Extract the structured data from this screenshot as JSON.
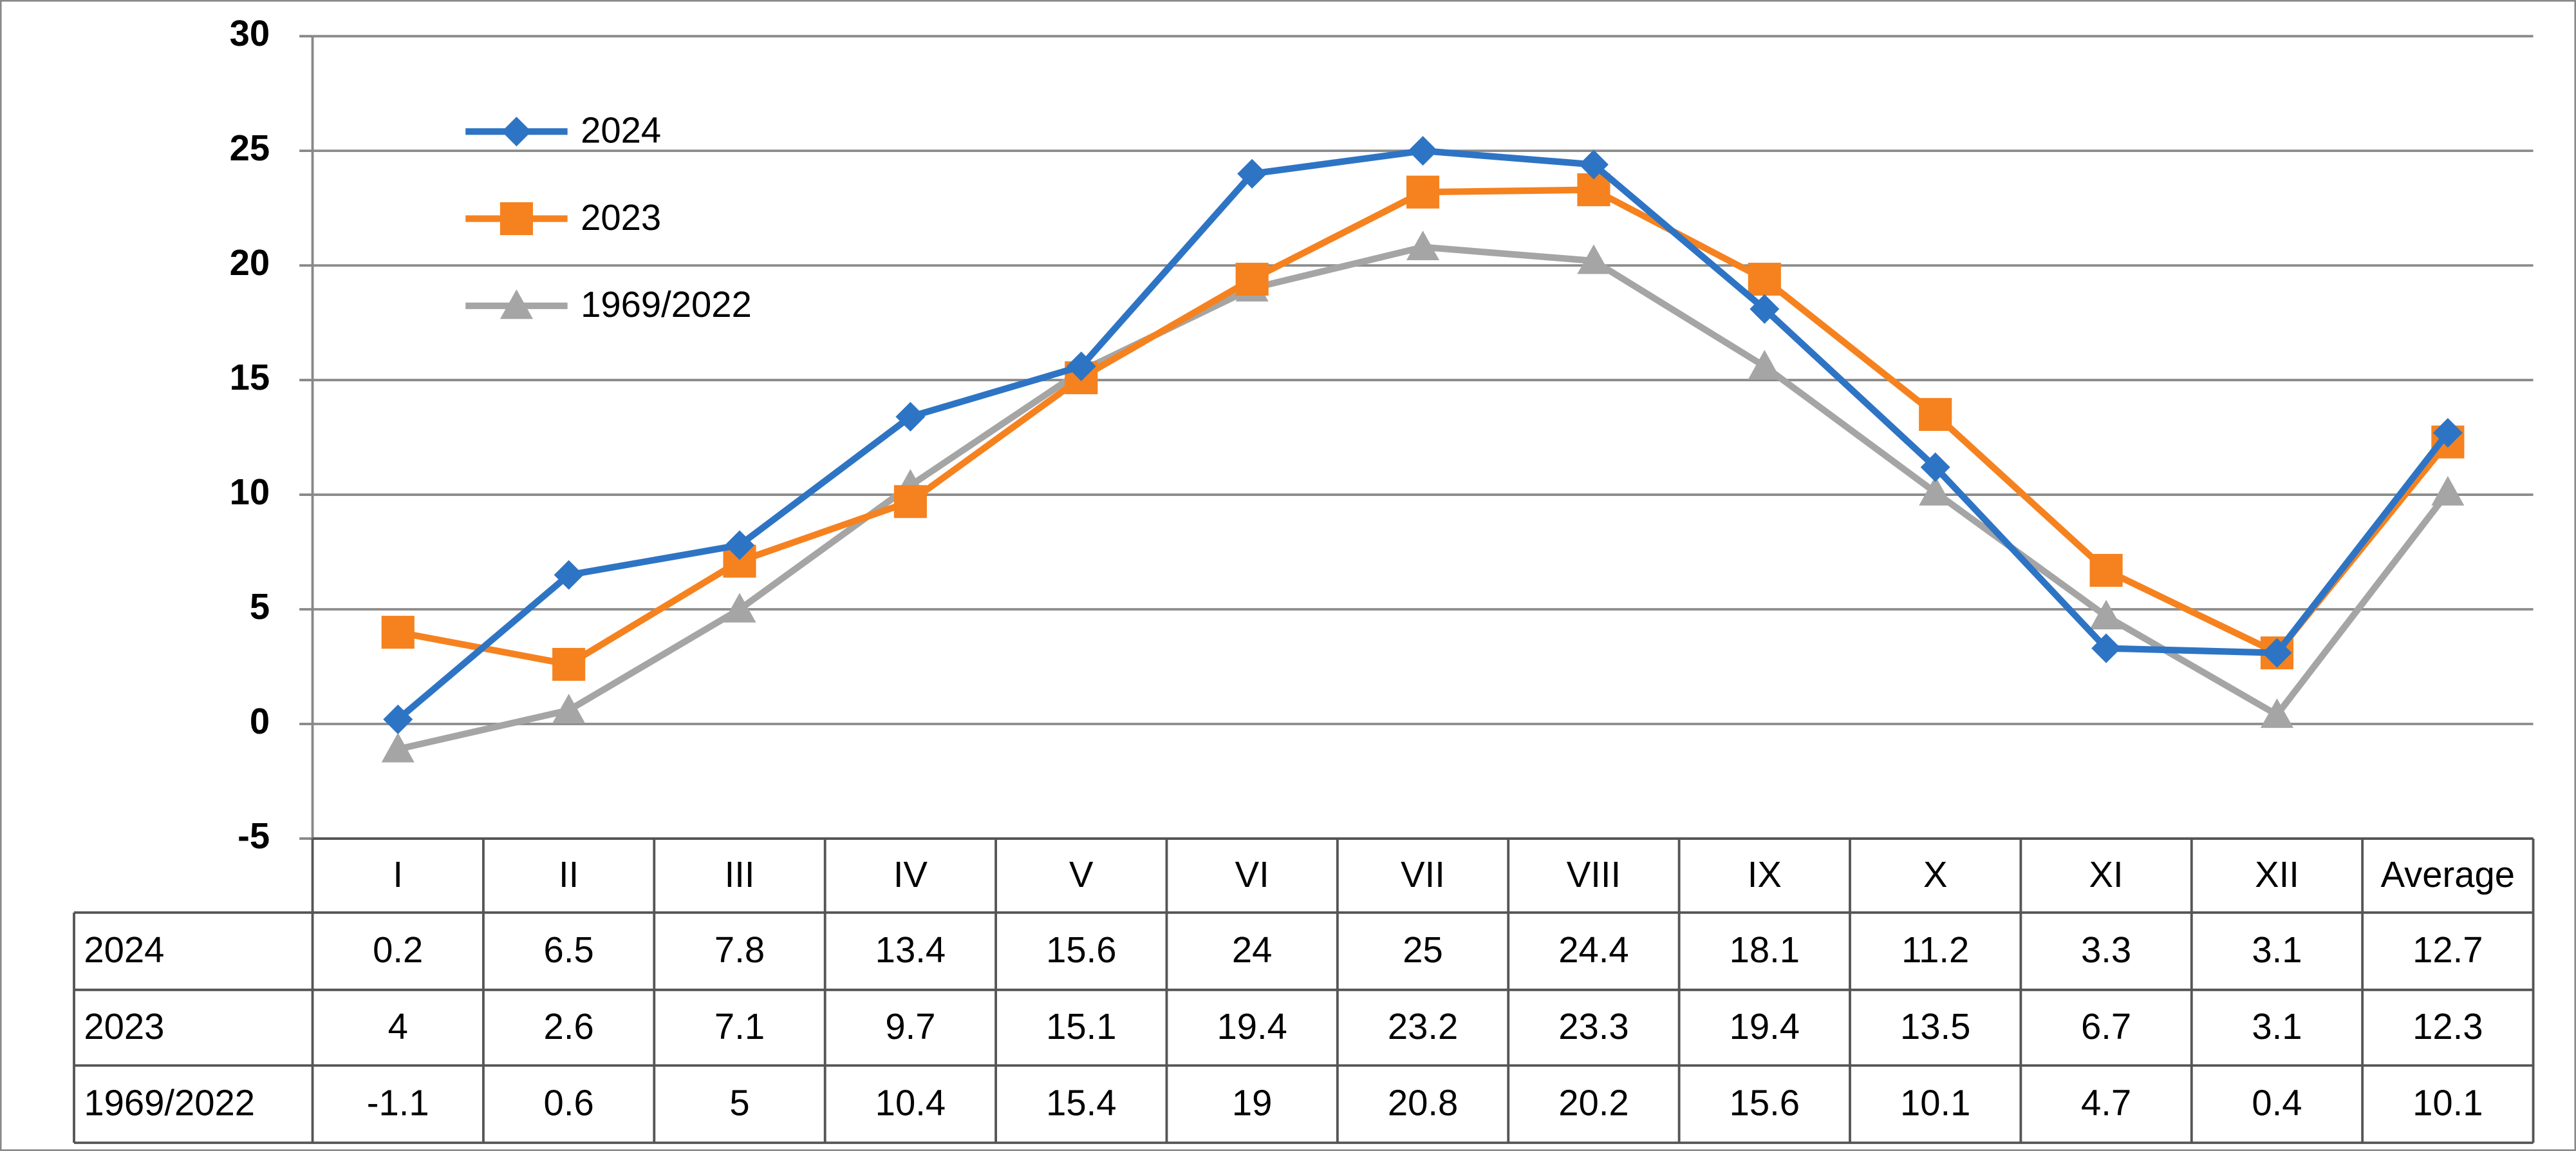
{
  "chart_data": {
    "type": "line",
    "categories": [
      "I",
      "II",
      "III",
      "IV",
      "V",
      "VI",
      "VII",
      "VIII",
      "IX",
      "X",
      "XI",
      "XII",
      "Average"
    ],
    "series": [
      {
        "name": "2024",
        "color": "#2e74c4",
        "marker": "diamond",
        "values": [
          0.2,
          6.5,
          7.8,
          13.4,
          15.6,
          24,
          25,
          24.4,
          18.1,
          11.2,
          3.3,
          3.1,
          12.7
        ]
      },
      {
        "name": "2023",
        "color": "#f5821f",
        "marker": "square",
        "values": [
          4,
          2.6,
          7.1,
          9.7,
          15.1,
          19.4,
          23.2,
          23.3,
          19.4,
          13.5,
          6.7,
          3.1,
          12.3
        ]
      },
      {
        "name": "1969/2022",
        "color": "#a5a5a5",
        "marker": "triangle",
        "values": [
          -1.1,
          0.6,
          5,
          10.4,
          15.4,
          19,
          20.8,
          20.2,
          15.6,
          10.1,
          4.7,
          0.4,
          10.1
        ]
      }
    ],
    "ylim": [
      -5,
      30
    ],
    "yticks": [
      -5,
      0,
      5,
      10,
      15,
      20,
      25,
      30
    ],
    "grid": true,
    "legend": "top-left",
    "data_table": true
  }
}
